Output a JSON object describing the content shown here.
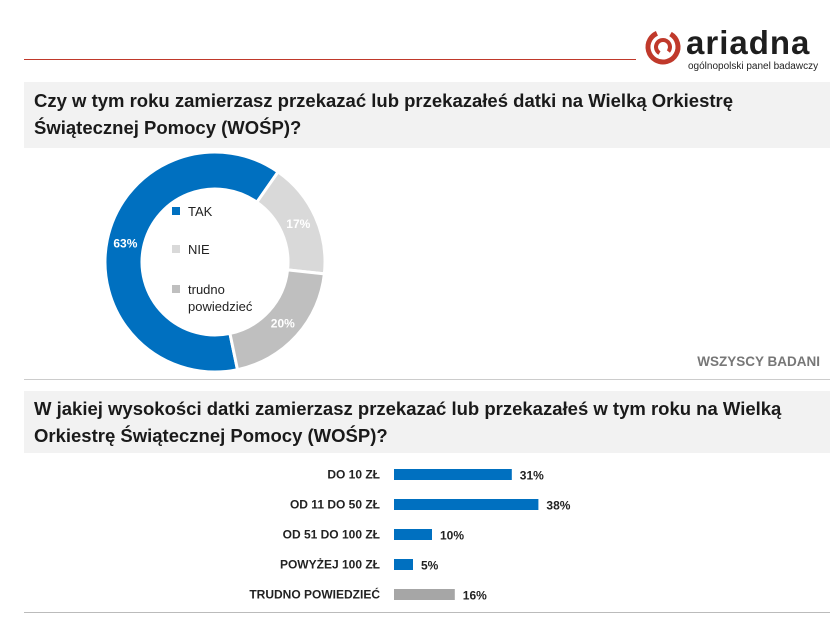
{
  "brand": {
    "name": "ariadna",
    "tagline": "ogólnopolski panel badawczy",
    "accent_color": "#c0392b"
  },
  "questions": {
    "q1": "Czy w tym roku zamierzasz przekazać lub przekazałeś datki na Wielką Orkiestrę Świątecznej Pomocy (WOŚP)?",
    "q2": "W jakiej wysokości datki zamierzasz przekazać lub przekazałeś w tym roku na Wielką Orkiestrę Świątecznej Pomocy (WOŚP)?"
  },
  "base_label": "WSZYSCY BADANI",
  "chart_data": [
    {
      "type": "pie",
      "variant": "donut",
      "categories": [
        "TAK",
        "NIE",
        "trudno powiedzieć"
      ],
      "legend_labels": [
        "TAK",
        "NIE",
        "trudno\npowiedzieć"
      ],
      "values": [
        63,
        17,
        20
      ],
      "value_labels": [
        "63%",
        "17%",
        "20%"
      ],
      "colors": [
        "#0070c0",
        "#d9d9d9",
        "#bfbfbf"
      ],
      "value_label_colors": [
        "#ffffff",
        "#ffffff",
        "#ffffff"
      ],
      "legend": "inside-center"
    },
    {
      "type": "bar",
      "orientation": "horizontal",
      "categories": [
        "DO 10 ZŁ",
        "OD 11 DO 50 ZŁ",
        "OD 51 DO 100 ZŁ",
        "POWYŻEJ 100 ZŁ",
        "TRUDNO POWIEDZIEĆ"
      ],
      "values": [
        31,
        38,
        10,
        5,
        16
      ],
      "value_labels": [
        "31%",
        "38%",
        "10%",
        "5%",
        "16%"
      ],
      "colors": [
        "#0070c0",
        "#0070c0",
        "#0070c0",
        "#0070c0",
        "#a6a6a6"
      ],
      "xlim": [
        0,
        100
      ],
      "grid": false
    }
  ]
}
